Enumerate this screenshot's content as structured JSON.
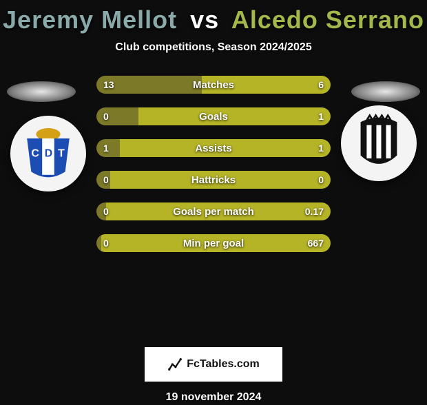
{
  "title": {
    "left": "Jeremy Mellot",
    "vs": "vs",
    "right": "Alcedo Serrano"
  },
  "title_colors": {
    "left": "#8aa9a9",
    "vs": "#ffffff",
    "right": "#a3b84a"
  },
  "subtitle": "Club competitions, Season 2024/2025",
  "bar_colors": {
    "left": "#7c7a28",
    "right": "#b5b326",
    "track": "#151515"
  },
  "stats": [
    {
      "label": "Matches",
      "left_val": "13",
      "right_val": "6",
      "left_pct": 45,
      "right_pct": 55
    },
    {
      "label": "Goals",
      "left_val": "0",
      "right_val": "1",
      "left_pct": 18,
      "right_pct": 82
    },
    {
      "label": "Assists",
      "left_val": "1",
      "right_val": "1",
      "left_pct": 10,
      "right_pct": 90
    },
    {
      "label": "Hattricks",
      "left_val": "0",
      "right_val": "0",
      "left_pct": 6,
      "right_pct": 94
    },
    {
      "label": "Goals per match",
      "left_val": "0",
      "right_val": "0.17",
      "left_pct": 4,
      "right_pct": 96
    },
    {
      "label": "Min per goal",
      "left_val": "0",
      "right_val": "667",
      "left_pct": 2,
      "right_pct": 98
    }
  ],
  "footer_brand": "FcTables.com",
  "footer_date": "19 november 2024",
  "badge_left": {
    "bg": "#ffffff",
    "shield": "#1b4db3",
    "stripe": "#ffffff",
    "crown": "#d4a015",
    "letters": "CDT",
    "letter_color": "#ffffff"
  },
  "badge_right": {
    "bg": "#ffffff",
    "body": "#111111",
    "stripe": "#ffffff"
  }
}
